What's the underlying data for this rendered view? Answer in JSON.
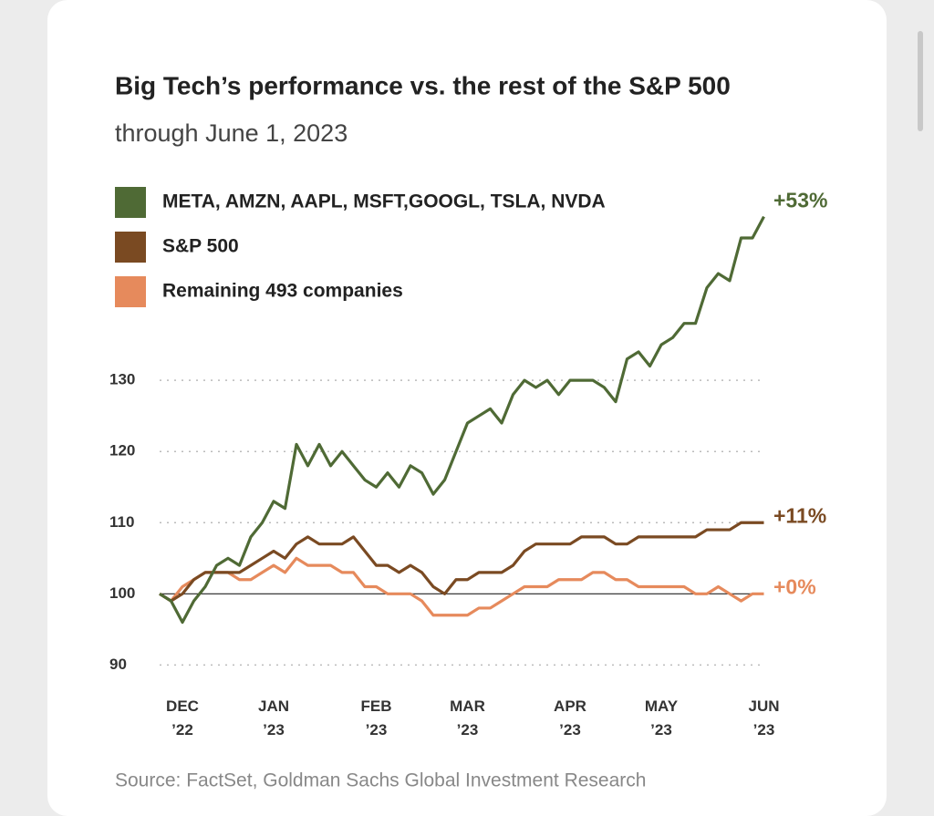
{
  "chart_data": {
    "type": "line",
    "title": "Big Tech’s performance vs. the rest of the S&P 500",
    "subtitle": "through June 1, 2023",
    "source": "Source: FactSet, Goldman Sachs Global Investment Research",
    "categories": [
      null,
      null,
      "DEC ’22",
      null,
      null,
      null,
      null,
      null,
      null,
      null,
      "JAN ’23",
      null,
      null,
      null,
      null,
      null,
      null,
      null,
      null,
      "FEB ’23",
      null,
      null,
      null,
      null,
      null,
      null,
      null,
      "MAR ’23",
      null,
      null,
      null,
      null,
      null,
      null,
      null,
      null,
      "APR ’23",
      null,
      null,
      null,
      null,
      null,
      null,
      null,
      "MAY ’23",
      null,
      null,
      null,
      null,
      null,
      null,
      null,
      null,
      "JUN ’23"
    ],
    "series": [
      {
        "name": "META, AMZN, AAPL, MSFT,GOOGL, TSLA, NVDA",
        "color": "#4f6a35",
        "end_label": "+53%",
        "values": [
          100,
          99,
          96,
          99,
          101,
          104,
          105,
          104,
          108,
          110,
          113,
          112,
          121,
          118,
          121,
          118,
          120,
          118,
          116,
          115,
          117,
          115,
          118,
          117,
          114,
          116,
          120,
          124,
          125,
          126,
          124,
          128,
          130,
          129,
          130,
          128,
          130,
          130,
          130,
          129,
          127,
          133,
          134,
          132,
          135,
          136,
          138,
          138,
          143,
          145,
          144,
          150,
          150,
          153
        ]
      },
      {
        "name": "S&P 500",
        "color": "#7a4a22",
        "end_label": "+11%",
        "values": [
          100,
          99,
          100,
          102,
          103,
          103,
          103,
          103,
          104,
          105,
          106,
          105,
          107,
          108,
          107,
          107,
          107,
          108,
          106,
          104,
          104,
          103,
          104,
          103,
          101,
          100,
          102,
          102,
          103,
          103,
          103,
          104,
          106,
          107,
          107,
          107,
          107,
          108,
          108,
          108,
          107,
          107,
          108,
          108,
          108,
          108,
          108,
          108,
          109,
          109,
          109,
          110,
          110,
          110
        ]
      },
      {
        "name": "Remaining 493 companies",
        "color": "#e68a5c",
        "end_label": "+0%",
        "values": [
          100,
          99,
          101,
          102,
          103,
          103,
          103,
          102,
          102,
          103,
          104,
          103,
          105,
          104,
          104,
          104,
          103,
          103,
          101,
          101,
          100,
          100,
          100,
          99,
          97,
          97,
          97,
          97,
          98,
          98,
          99,
          100,
          101,
          101,
          101,
          102,
          102,
          102,
          103,
          103,
          102,
          102,
          101,
          101,
          101,
          101,
          101,
          100,
          100,
          101,
          100,
          99,
          100,
          100
        ]
      }
    ],
    "ylim": [
      88,
      155
    ],
    "yticks": [
      90,
      100,
      110,
      120,
      130
    ],
    "grid": true,
    "baseline": 100
  }
}
